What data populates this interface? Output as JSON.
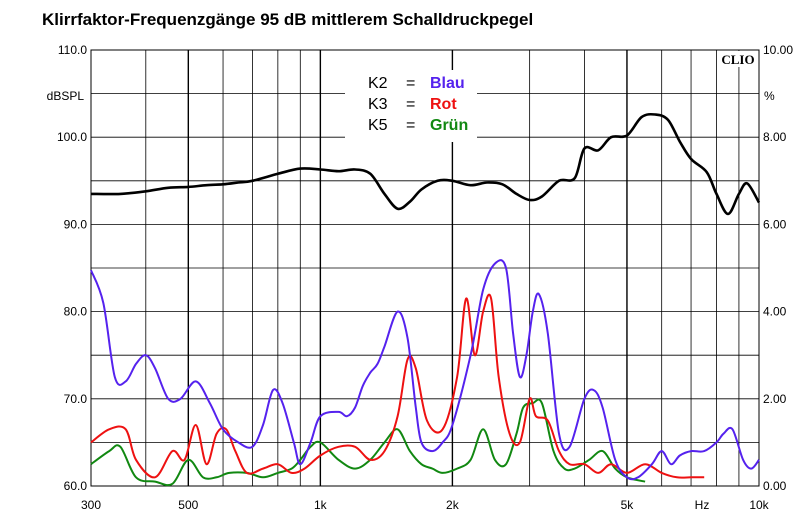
{
  "chart_data": {
    "type": "line",
    "title": "Klirrfaktor-Frequenzgänge 95 dB mittlerem Schalldruckpegel",
    "xscale": "log",
    "xlim": [
      300,
      10000
    ],
    "ylim_left": [
      60,
      110
    ],
    "ylim_right": [
      0,
      10
    ],
    "ylabel_left": "dBSPL",
    "ylabel_right": "%",
    "x_unit_label": "Hz",
    "x_ticks": [
      {
        "v": 300,
        "label": "300"
      },
      {
        "v": 500,
        "label": "500"
      },
      {
        "v": 1000,
        "label": "1k"
      },
      {
        "v": 2000,
        "label": "2k"
      },
      {
        "v": 5000,
        "label": "5k"
      },
      {
        "v": 10000,
        "label": "10k"
      }
    ],
    "y_ticks_left": [
      "60.0",
      "70.0",
      "80.0",
      "90.0",
      "100.0",
      "110.0"
    ],
    "y_ticks_right": [
      "0.00",
      "2.00",
      "4.00",
      "6.00",
      "8.00",
      "10.00"
    ],
    "brand": "CLIO",
    "grid": true,
    "legend": {
      "placement": "top-center",
      "entries": [
        {
          "key": "K2",
          "eq": "=",
          "name": "Blau",
          "color": "#5522ee"
        },
        {
          "key": "K3",
          "eq": "=",
          "name": "Rot",
          "color": "#ee1111"
        },
        {
          "key": "K5",
          "eq": "=",
          "name": "Grün",
          "color": "#118811"
        }
      ]
    },
    "series": [
      {
        "axis": "left",
        "color": "#000000",
        "points": [
          [
            300,
            93.5
          ],
          [
            350,
            93.5
          ],
          [
            400,
            93.8
          ],
          [
            450,
            94.2
          ],
          [
            500,
            94.3
          ],
          [
            550,
            94.5
          ],
          [
            600,
            94.6
          ],
          [
            650,
            94.8
          ],
          [
            700,
            95
          ],
          [
            800,
            95.8
          ],
          [
            900,
            96.4
          ],
          [
            1000,
            96.3
          ],
          [
            1100,
            96.1
          ],
          [
            1200,
            96.3
          ],
          [
            1300,
            95.8
          ],
          [
            1400,
            93.5
          ],
          [
            1500,
            91.8
          ],
          [
            1600,
            92.6
          ],
          [
            1700,
            94
          ],
          [
            1850,
            95
          ],
          [
            2000,
            95
          ],
          [
            2200,
            94.5
          ],
          [
            2400,
            94.8
          ],
          [
            2600,
            94.6
          ],
          [
            2800,
            93.5
          ],
          [
            3000,
            92.8
          ],
          [
            3200,
            93.2
          ],
          [
            3500,
            95
          ],
          [
            3800,
            95.3
          ],
          [
            4000,
            98.7
          ],
          [
            4300,
            98.5
          ],
          [
            4600,
            100
          ],
          [
            5000,
            100.2
          ],
          [
            5400,
            102.3
          ],
          [
            5800,
            102.6
          ],
          [
            6200,
            102
          ],
          [
            6600,
            99.5
          ],
          [
            7000,
            97.5
          ],
          [
            7600,
            96
          ],
          [
            8000,
            93.5
          ],
          [
            8500,
            91.2
          ],
          [
            9000,
            93.5
          ],
          [
            9400,
            94.7
          ],
          [
            10000,
            92.5
          ]
        ]
      },
      {
        "axis": "right",
        "color": "#5522ee",
        "points": [
          [
            300,
            4.95
          ],
          [
            320,
            4.2
          ],
          [
            340,
            2.5
          ],
          [
            360,
            2.4
          ],
          [
            380,
            2.8
          ],
          [
            400,
            3.0
          ],
          [
            420,
            2.7
          ],
          [
            450,
            2.0
          ],
          [
            480,
            2.0
          ],
          [
            520,
            2.4
          ],
          [
            560,
            1.9
          ],
          [
            600,
            1.3
          ],
          [
            650,
            1.0
          ],
          [
            700,
            0.9
          ],
          [
            740,
            1.4
          ],
          [
            780,
            2.2
          ],
          [
            820,
            1.9
          ],
          [
            870,
            1.0
          ],
          [
            900,
            0.5
          ],
          [
            950,
            1.0
          ],
          [
            1000,
            1.6
          ],
          [
            1100,
            1.7
          ],
          [
            1150,
            1.6
          ],
          [
            1200,
            1.8
          ],
          [
            1250,
            2.3
          ],
          [
            1300,
            2.6
          ],
          [
            1350,
            2.8
          ],
          [
            1400,
            3.2
          ],
          [
            1500,
            4.0
          ],
          [
            1580,
            3.4
          ],
          [
            1650,
            1.8
          ],
          [
            1700,
            1.0
          ],
          [
            1800,
            0.8
          ],
          [
            1900,
            1.0
          ],
          [
            2000,
            1.4
          ],
          [
            2200,
            3.0
          ],
          [
            2350,
            4.5
          ],
          [
            2500,
            5.1
          ],
          [
            2650,
            5.0
          ],
          [
            2750,
            3.5
          ],
          [
            2850,
            2.5
          ],
          [
            2950,
            3.0
          ],
          [
            3050,
            4.0
          ],
          [
            3150,
            4.4
          ],
          [
            3300,
            3.5
          ],
          [
            3500,
            1.2
          ],
          [
            3700,
            0.9
          ],
          [
            4000,
            2.0
          ],
          [
            4200,
            2.2
          ],
          [
            4400,
            1.8
          ],
          [
            4700,
            0.6
          ],
          [
            5000,
            0.2
          ],
          [
            5300,
            0.2
          ],
          [
            5700,
            0.5
          ],
          [
            6000,
            0.8
          ],
          [
            6300,
            0.5
          ],
          [
            6600,
            0.7
          ],
          [
            7000,
            0.8
          ],
          [
            7500,
            0.8
          ],
          [
            8000,
            1.0
          ],
          [
            8300,
            1.2
          ],
          [
            8700,
            1.3
          ],
          [
            9200,
            0.6
          ],
          [
            9600,
            0.4
          ],
          [
            10000,
            0.6
          ]
        ]
      },
      {
        "axis": "right",
        "color": "#ee1111",
        "points": [
          [
            300,
            1.0
          ],
          [
            330,
            1.3
          ],
          [
            360,
            1.3
          ],
          [
            380,
            0.6
          ],
          [
            420,
            0.2
          ],
          [
            460,
            0.8
          ],
          [
            490,
            0.6
          ],
          [
            520,
            1.4
          ],
          [
            550,
            0.5
          ],
          [
            580,
            1.2
          ],
          [
            610,
            1.3
          ],
          [
            640,
            0.8
          ],
          [
            680,
            0.3
          ],
          [
            740,
            0.4
          ],
          [
            800,
            0.5
          ],
          [
            860,
            0.3
          ],
          [
            920,
            0.4
          ],
          [
            1000,
            0.7
          ],
          [
            1100,
            0.9
          ],
          [
            1200,
            0.9
          ],
          [
            1300,
            0.6
          ],
          [
            1400,
            0.8
          ],
          [
            1500,
            1.6
          ],
          [
            1580,
            2.9
          ],
          [
            1650,
            2.7
          ],
          [
            1750,
            1.5
          ],
          [
            1900,
            1.3
          ],
          [
            2050,
            2.5
          ],
          [
            2150,
            4.3
          ],
          [
            2250,
            3.0
          ],
          [
            2350,
            4.0
          ],
          [
            2450,
            4.3
          ],
          [
            2550,
            2.5
          ],
          [
            2700,
            1.2
          ],
          [
            2850,
            1.0
          ],
          [
            3000,
            2.0
          ],
          [
            3100,
            1.6
          ],
          [
            3300,
            1.5
          ],
          [
            3500,
            0.8
          ],
          [
            3700,
            0.5
          ],
          [
            4000,
            0.5
          ],
          [
            4300,
            0.3
          ],
          [
            4600,
            0.5
          ],
          [
            5000,
            0.3
          ],
          [
            5500,
            0.5
          ],
          [
            6000,
            0.3
          ],
          [
            6500,
            0.2
          ],
          [
            7000,
            0.2
          ],
          [
            7500,
            0.2
          ]
        ]
      },
      {
        "axis": "right",
        "color": "#118811",
        "points": [
          [
            300,
            0.5
          ],
          [
            330,
            0.8
          ],
          [
            350,
            0.9
          ],
          [
            380,
            0.2
          ],
          [
            420,
            0.1
          ],
          [
            460,
            0.05
          ],
          [
            500,
            0.6
          ],
          [
            540,
            0.2
          ],
          [
            580,
            0.2
          ],
          [
            620,
            0.3
          ],
          [
            680,
            0.3
          ],
          [
            740,
            0.2
          ],
          [
            800,
            0.3
          ],
          [
            860,
            0.4
          ],
          [
            900,
            0.6
          ],
          [
            950,
            0.9
          ],
          [
            1000,
            1.0
          ],
          [
            1100,
            0.6
          ],
          [
            1200,
            0.4
          ],
          [
            1300,
            0.6
          ],
          [
            1400,
            1.0
          ],
          [
            1500,
            1.3
          ],
          [
            1600,
            0.8
          ],
          [
            1700,
            0.5
          ],
          [
            1800,
            0.4
          ],
          [
            1900,
            0.3
          ],
          [
            2050,
            0.4
          ],
          [
            2200,
            0.6
          ],
          [
            2350,
            1.3
          ],
          [
            2500,
            0.6
          ],
          [
            2650,
            0.5
          ],
          [
            2800,
            1.2
          ],
          [
            2900,
            1.8
          ],
          [
            3050,
            1.9
          ],
          [
            3200,
            1.9
          ],
          [
            3400,
            0.8
          ],
          [
            3600,
            0.4
          ],
          [
            3800,
            0.4
          ],
          [
            4100,
            0.6
          ],
          [
            4400,
            0.8
          ],
          [
            4700,
            0.4
          ],
          [
            5000,
            0.2
          ],
          [
            5500,
            0.1
          ]
        ]
      }
    ]
  }
}
